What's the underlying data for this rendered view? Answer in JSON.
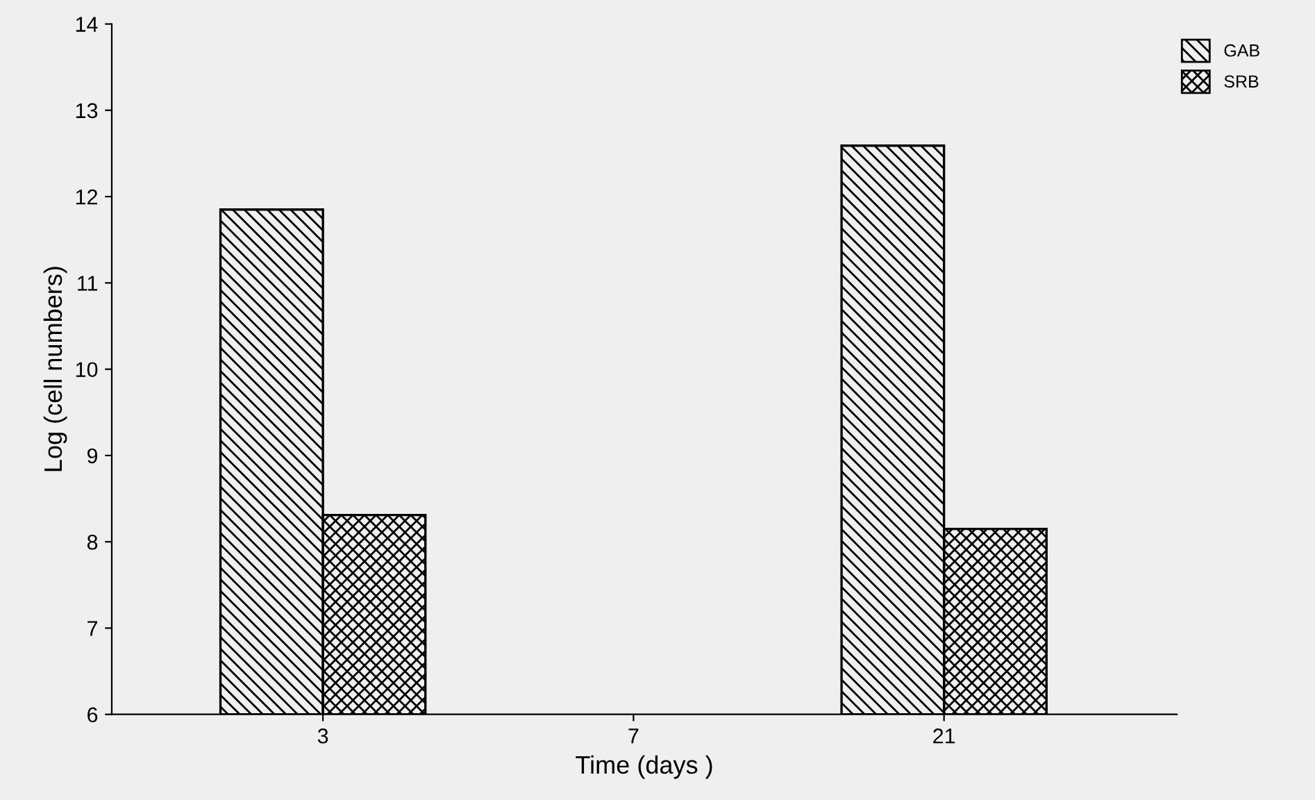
{
  "chart_data": {
    "type": "bar",
    "xlabel": "Time (days )",
    "ylabel": "Log (cell numbers)",
    "categories": [
      "3",
      "7",
      "21"
    ],
    "series": [
      {
        "name": "GAB",
        "color": "#000000",
        "values": [
          11.85,
          null,
          12.59
        ]
      },
      {
        "name": "SRB",
        "color": "#000000",
        "values": [
          8.31,
          null,
          8.15
        ]
      }
    ],
    "ylim": [
      6,
      14
    ],
    "yticks": [
      6,
      7,
      8,
      9,
      10,
      11,
      12,
      13,
      14
    ],
    "grid": false,
    "legend": "top right"
  }
}
